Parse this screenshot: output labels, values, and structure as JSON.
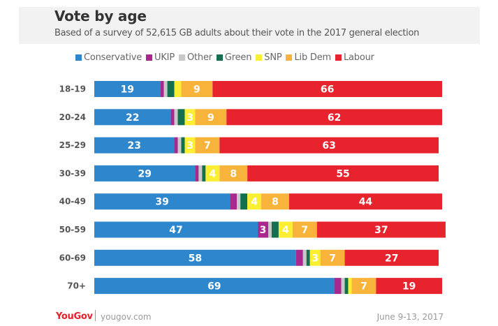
{
  "header": {
    "title": "Vote by age",
    "subtitle": "Based of a survey of 52,615 GB adults about their vote in the 2017 general election"
  },
  "footer": {
    "logo": "YouGov",
    "url": "yougov.com",
    "date": "June 9-13, 2017"
  },
  "chart_data": {
    "type": "bar",
    "orientation": "horizontal",
    "stacked": true,
    "title": "Vote by age",
    "subtitle": "Based of a survey of 52,615 GB adults about their vote in the 2017 general election",
    "legend_position": "top",
    "grid": false,
    "xlim": [
      0,
      100
    ],
    "categories": [
      "18-19",
      "20-24",
      "25-29",
      "30-39",
      "40-49",
      "50-59",
      "60-69",
      "70+"
    ],
    "series": [
      {
        "name": "Conservative",
        "color": "#2e86cd",
        "values": [
          19,
          22,
          23,
          29,
          39,
          47,
          58,
          69
        ],
        "labels": [
          "19",
          "22",
          "23",
          "29",
          "39",
          "47",
          "58",
          "69"
        ]
      },
      {
        "name": "UKIP",
        "color": "#a8288e",
        "values": [
          1,
          1,
          1,
          1,
          2,
          3,
          2,
          2
        ],
        "labels": [
          "",
          "",
          "",
          "",
          "",
          "3",
          "",
          ""
        ]
      },
      {
        "name": "Other",
        "color": "#c8c8c8",
        "values": [
          1,
          1,
          1,
          1,
          1,
          1,
          1,
          1
        ],
        "labels": [
          "",
          "",
          "",
          "",
          "",
          "",
          "",
          ""
        ]
      },
      {
        "name": "Green",
        "color": "#12704e",
        "values": [
          2,
          2,
          1,
          1,
          2,
          2,
          1,
          1
        ],
        "labels": [
          "",
          "",
          "",
          "",
          "",
          "",
          "",
          ""
        ]
      },
      {
        "name": "SNP",
        "color": "#fbee33",
        "values": [
          2,
          3,
          3,
          4,
          4,
          4,
          3,
          1
        ],
        "labels": [
          "",
          "3",
          "3",
          "4",
          "4",
          "4",
          "3",
          ""
        ]
      },
      {
        "name": "Lib Dem",
        "color": "#f8b43a",
        "values": [
          9,
          9,
          7,
          8,
          8,
          7,
          7,
          7
        ],
        "labels": [
          "9",
          "9",
          "7",
          "8",
          "8",
          "7",
          "7",
          "7"
        ]
      },
      {
        "name": "Labour",
        "color": "#e7242e",
        "values": [
          66,
          62,
          63,
          55,
          44,
          37,
          27,
          19
        ],
        "labels": [
          "66",
          "62",
          "63",
          "55",
          "44",
          "37",
          "27",
          "19"
        ]
      }
    ]
  }
}
